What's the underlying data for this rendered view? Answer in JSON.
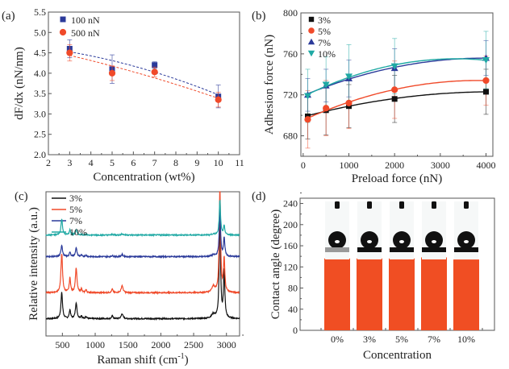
{
  "chart_data": [
    {
      "id": "a",
      "panel_label": "(a)",
      "type": "scatter",
      "xlabel": "Concentration (wt%)",
      "ylabel": "dF/dx (nN/nm)",
      "xlim": [
        2,
        11
      ],
      "ylim": [
        2.0,
        5.5
      ],
      "xticks": [
        2,
        3,
        4,
        5,
        6,
        7,
        8,
        9,
        10,
        11
      ],
      "yticks": [
        2.0,
        2.5,
        3.0,
        3.5,
        4.0,
        4.5,
        5.0,
        5.5
      ],
      "legend_position": "top-left",
      "series": [
        {
          "name": "100 nN",
          "color": "#2b3a9a",
          "marker": "square",
          "fit": "dashed",
          "x": [
            3,
            5,
            7,
            10
          ],
          "y": [
            4.6,
            4.1,
            4.2,
            3.43
          ],
          "err": [
            0.22,
            0.35,
            0.08,
            0.28
          ]
        },
        {
          "name": "500 nN",
          "color": "#f04a2a",
          "marker": "circle",
          "fit": "dashed",
          "x": [
            3,
            5,
            7,
            10
          ],
          "y": [
            4.5,
            4.0,
            4.03,
            3.35
          ],
          "err": [
            0.2,
            0.18,
            0.12,
            0.18
          ]
        }
      ]
    },
    {
      "id": "b",
      "panel_label": "(b)",
      "type": "line",
      "xlabel": "Preload force (nN)",
      "ylabel": "Adhesion force (nN)",
      "xlim": [
        -50,
        4150
      ],
      "ylim": [
        660,
        800
      ],
      "xticks": [
        0,
        1000,
        2000,
        3000,
        4000
      ],
      "yticks": [
        680,
        720,
        760,
        800
      ],
      "legend_position": "top-left",
      "series": [
        {
          "name": "3%",
          "color": "#111111",
          "marker": "square",
          "x": [
            100,
            500,
            1000,
            2000,
            4000
          ],
          "y": [
            699,
            705,
            709,
            716,
            723
          ],
          "err": [
            22,
            24,
            21,
            23,
            22
          ]
        },
        {
          "name": "5%",
          "color": "#f04a2a",
          "marker": "circle",
          "x": [
            100,
            500,
            1000,
            2000,
            4000
          ],
          "y": [
            696,
            707,
            712,
            725,
            734
          ],
          "err": [
            28,
            27,
            25,
            28,
            24
          ]
        },
        {
          "name": "7%",
          "color": "#2b3a9a",
          "marker": "triangle-up",
          "x": [
            100,
            500,
            1000,
            2000,
            4000
          ],
          "y": [
            720,
            729,
            736,
            746,
            756
          ],
          "err": [
            16,
            16,
            18,
            19,
            17
          ]
        },
        {
          "name": "10%",
          "color": "#1fa9a4",
          "marker": "triangle-down",
          "x": [
            100,
            500,
            1000,
            2000,
            4000
          ],
          "y": [
            719,
            730,
            738,
            748,
            754
          ],
          "err": [
            26,
            27,
            31,
            27,
            28
          ]
        }
      ]
    },
    {
      "id": "c",
      "panel_label": "(c)",
      "type": "line",
      "xlabel": "Raman shift  (cm",
      "xlabel_sup": "-1",
      "xlabel_end": ")",
      "ylabel": "Relative intensity (a.u.)",
      "xlim": [
        250,
        3200
      ],
      "ylim": [
        0,
        10
      ],
      "xticks": [
        500,
        1000,
        1500,
        2000,
        2500,
        3000
      ],
      "legend_position": "top-left",
      "peaks": [
        {
          "pos": 490,
          "w": 14
        },
        {
          "pos": 615,
          "w": 12
        },
        {
          "pos": 710,
          "w": 14
        },
        {
          "pos": 790,
          "w": 10
        },
        {
          "pos": 860,
          "w": 12
        },
        {
          "pos": 1260,
          "w": 12
        },
        {
          "pos": 1410,
          "w": 16
        },
        {
          "pos": 2800,
          "w": 30
        },
        {
          "pos": 2900,
          "w": 12
        },
        {
          "pos": 2965,
          "w": 12
        }
      ],
      "series": [
        {
          "name": "3%",
          "color": "#111111",
          "baseline": 1.2,
          "amps": [
            1.8,
            0.6,
            1.1,
            0.2,
            0.15,
            0.2,
            0.35,
            0.3,
            7.0,
            3.3
          ]
        },
        {
          "name": "5%",
          "color": "#f04a2a",
          "baseline": 3.0,
          "amps": [
            2.7,
            1.0,
            1.7,
            0.25,
            0.2,
            0.25,
            0.5,
            0.4,
            7.2,
            2.3
          ]
        },
        {
          "name": "7%",
          "color": "#2b3a9a",
          "baseline": 5.5,
          "amps": [
            0.8,
            0.3,
            0.6,
            0.1,
            0.1,
            0.08,
            0.15,
            0.1,
            3.3,
            1.3
          ]
        },
        {
          "name": "10%",
          "color": "#1fa9a4",
          "baseline": 7.0,
          "amps": [
            1.1,
            0.35,
            0.35,
            0.05,
            0.05,
            0.05,
            0.08,
            0.05,
            2.4,
            0.6
          ]
        }
      ]
    },
    {
      "id": "d",
      "panel_label": "(d)",
      "type": "bar",
      "xlabel": "Concentration",
      "ylabel": "Contact angle (degree)",
      "ylim": [
        0,
        250
      ],
      "yticks": [
        0,
        40,
        80,
        120,
        160,
        200,
        240
      ],
      "categories": [
        "0%",
        "3%",
        "5%",
        "7%",
        "10%"
      ],
      "values": [
        136,
        136,
        136,
        138,
        134
      ],
      "bar_color": "#f04e23",
      "inset_images": "water droplet photos above each bar"
    }
  ]
}
